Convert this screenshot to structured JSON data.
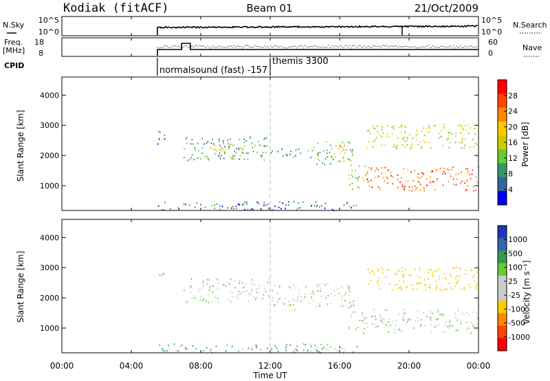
{
  "header": {
    "station": "Kodiak (fitACF)",
    "beam": "Beam 01",
    "date": "21/Oct/2009"
  },
  "noise_panel": {
    "left_label": "N.Sky",
    "right_label": "N.Search",
    "right_legend_style": "dotted",
    "left_ticks": [
      "10^5",
      "10^0"
    ],
    "right_ticks": [
      "10^5",
      "10^0"
    ]
  },
  "freq_panel": {
    "left_label_line1": "Freq.",
    "left_label_line2": "[MHz]",
    "right_label": "Nave",
    "right_legend_style": "dotted",
    "left_ticks": [
      "18",
      "8"
    ],
    "right_ticks": [
      "60",
      "0"
    ]
  },
  "cpid": {
    "label": "CPID",
    "programs": [
      {
        "name": "normalsound (fast) -157",
        "start_hour": 5.5
      },
      {
        "name": "themis 3300",
        "start_hour": 12.0
      }
    ]
  },
  "power_panel": {
    "ylabel": "Slant Range [km]",
    "yticks": [
      "4000",
      "3000",
      "2000",
      "1000"
    ],
    "colorbar_label": "Power [dB]",
    "colorbar_ticks": [
      "28",
      "24",
      "20",
      "16",
      "12",
      "8",
      "4"
    ],
    "colorbar_colors": [
      "#ff0000",
      "#ff4400",
      "#ff8800",
      "#ffcc00",
      "#cccc00",
      "#66cc33",
      "#339966",
      "#336699",
      "#0000ee"
    ]
  },
  "velocity_panel": {
    "ylabel": "Slant Range [km]",
    "yticks": [
      "4000",
      "3000",
      "2000",
      "1000"
    ],
    "colorbar_label": "Velocity [m s⁻¹]",
    "colorbar_ticks": [
      "1000",
      "500",
      "100",
      "25",
      "-25",
      "-100",
      "-500",
      "-1000"
    ],
    "colorbar_colors": [
      "#2233bb",
      "#3366aa",
      "#339955",
      "#66cc33",
      "#cccccc",
      "#cccccc",
      "#ffcc00",
      "#ff8800",
      "#ff4400",
      "#ff0000"
    ]
  },
  "xaxis": {
    "label": "Time UT",
    "ticks": [
      "00:00",
      "04:00",
      "08:00",
      "12:00",
      "16:00",
      "20:00",
      "00:00"
    ]
  },
  "chart_data": {
    "type": "heatmap",
    "x_unit": "hours UT",
    "x_range": [
      0,
      24
    ],
    "y_unit": "km",
    "y_range": [
      180,
      4600
    ],
    "power_scatter_regions": [
      {
        "t_start": 5.5,
        "t_end": 6.0,
        "r_min": 2400,
        "r_max": 2900,
        "level_db": 6
      },
      {
        "t_start": 7.0,
        "t_end": 12.0,
        "r_min": 1850,
        "r_max": 2650,
        "level_db": 10
      },
      {
        "t_start": 8.5,
        "t_end": 10.5,
        "r_min": 1950,
        "r_max": 2400,
        "level_db": 19
      },
      {
        "t_start": 12.0,
        "t_end": 14.5,
        "r_min": 1950,
        "r_max": 2250,
        "level_db": 8
      },
      {
        "t_start": 14.5,
        "t_end": 16.8,
        "r_min": 1700,
        "r_max": 2500,
        "level_db": 12
      },
      {
        "t_start": 15.3,
        "t_end": 16.3,
        "r_min": 1950,
        "r_max": 2400,
        "level_db": 19
      },
      {
        "t_start": 16.5,
        "t_end": 17.5,
        "r_min": 900,
        "r_max": 1700,
        "level_db": 14
      },
      {
        "t_start": 17.5,
        "t_end": 24.0,
        "r_min": 850,
        "r_max": 1650,
        "level_db": 27
      },
      {
        "t_start": 17.5,
        "t_end": 24.0,
        "r_min": 2250,
        "r_max": 3050,
        "level_db": 17
      },
      {
        "t_start": 5.5,
        "t_end": 17.0,
        "r_min": 200,
        "r_max": 500,
        "level_db": 7
      }
    ],
    "velocity_scatter_regions": [
      {
        "t_start": 5.5,
        "t_end": 6.0,
        "r_min": 2400,
        "r_max": 2900,
        "velocity": 0
      },
      {
        "t_start": 7.0,
        "t_end": 12.0,
        "r_min": 1850,
        "r_max": 2650,
        "velocity": 0
      },
      {
        "t_start": 12.0,
        "t_end": 16.8,
        "r_min": 1700,
        "r_max": 2500,
        "velocity": 0
      },
      {
        "t_start": 13.0,
        "t_end": 13.5,
        "r_min": 1600,
        "r_max": 1800,
        "velocity": -200
      },
      {
        "t_start": 16.5,
        "t_end": 24.0,
        "r_min": 850,
        "r_max": 1650,
        "velocity": 0
      },
      {
        "t_start": 17.5,
        "t_end": 24.0,
        "r_min": 2250,
        "r_max": 3050,
        "velocity": -120
      },
      {
        "t_start": 5.5,
        "t_end": 17.0,
        "r_min": 200,
        "r_max": 500,
        "velocity": 60
      }
    ],
    "noise_sky_level": 0.45,
    "noise_search_step_hour": 19.6
  }
}
